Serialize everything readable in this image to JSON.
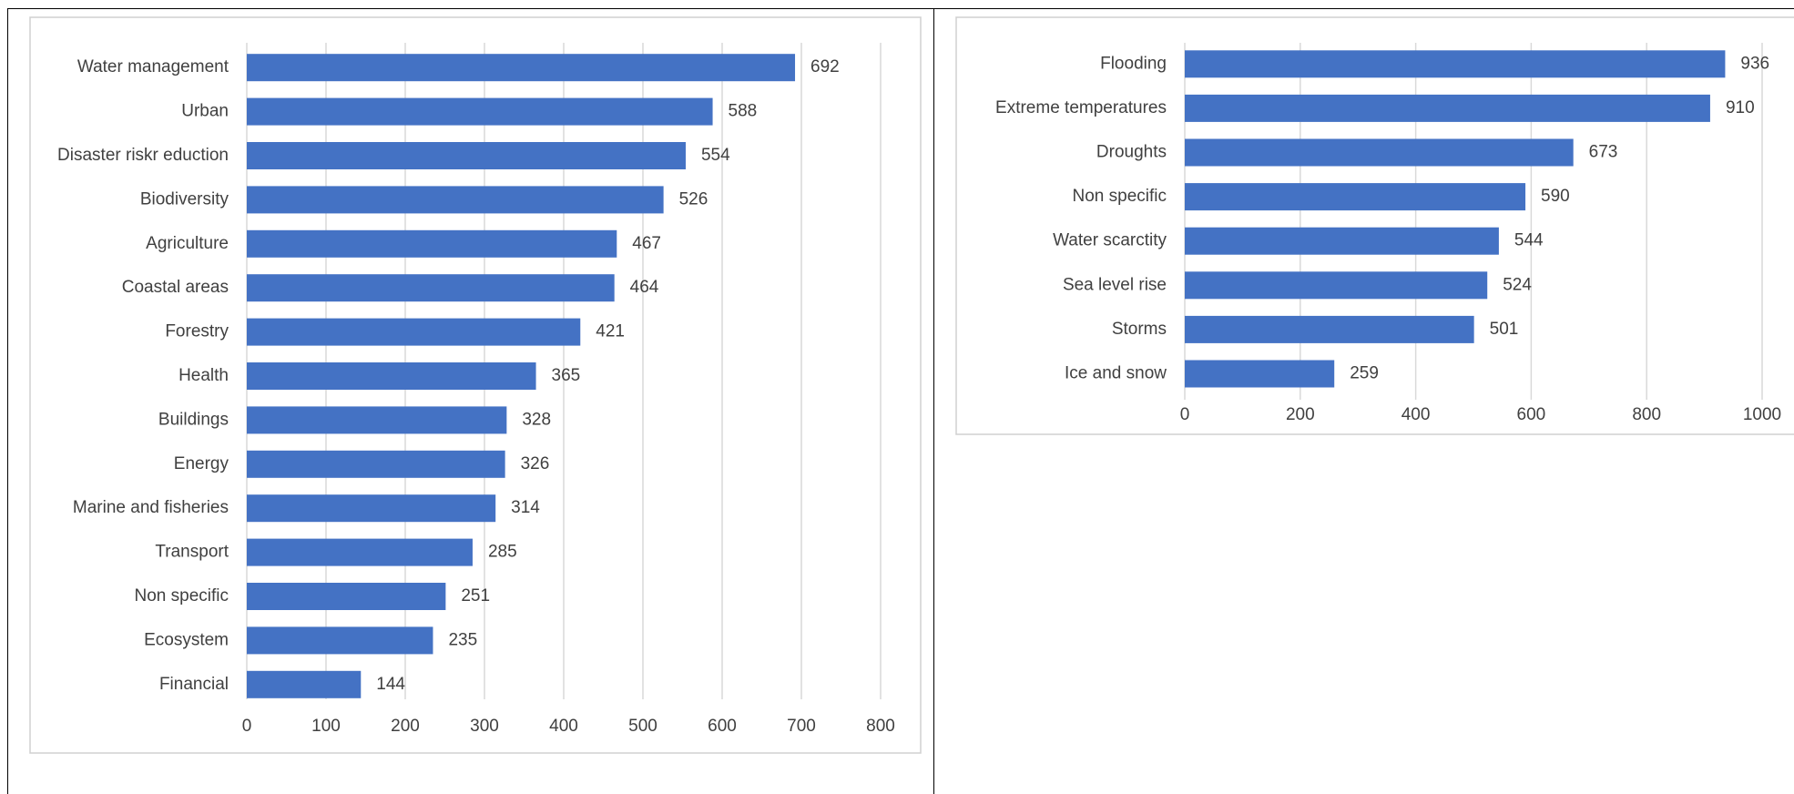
{
  "colors": {
    "bar": "#4472c4",
    "grid": "#d9d9d9",
    "text": "#404040"
  },
  "chart_data": [
    {
      "type": "bar",
      "orientation": "horizontal",
      "title": "",
      "xlabel": "",
      "ylabel": "",
      "xlim": [
        0,
        800
      ],
      "ticks": [
        0,
        100,
        200,
        300,
        400,
        500,
        600,
        700,
        800
      ],
      "grid": true,
      "legend": "none",
      "categories": [
        "Water management",
        "Urban",
        "Disaster riskr eduction",
        "Biodiversity",
        "Agriculture",
        "Coastal areas",
        "Forestry",
        "Health",
        "Buildings",
        "Energy",
        "Marine and fisheries",
        "Transport",
        "Non specific",
        "Ecosystem",
        "Financial"
      ],
      "values": [
        692,
        588,
        554,
        526,
        467,
        464,
        421,
        365,
        328,
        326,
        314,
        285,
        251,
        235,
        144
      ]
    },
    {
      "type": "bar",
      "orientation": "horizontal",
      "title": "",
      "xlabel": "",
      "ylabel": "",
      "xlim": [
        0,
        1000
      ],
      "ticks": [
        0,
        200,
        400,
        600,
        800,
        1000
      ],
      "grid": true,
      "legend": "none",
      "categories": [
        "Flooding",
        "Extreme temperatures",
        "Droughts",
        "Non specific",
        "Water scarctity",
        "Sea level rise",
        "Storms",
        "Ice and snow"
      ],
      "values": [
        936,
        910,
        673,
        590,
        544,
        524,
        501,
        259
      ]
    }
  ]
}
